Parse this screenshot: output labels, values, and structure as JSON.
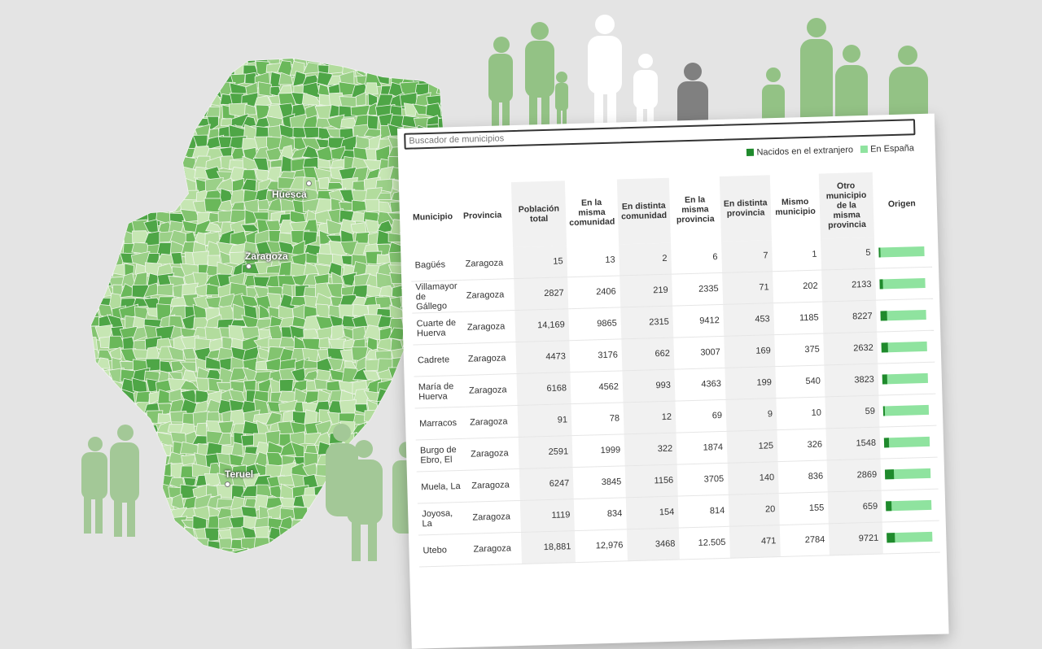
{
  "map": {
    "cities": [
      {
        "name": "Huesca"
      },
      {
        "name": "Zaragoza"
      },
      {
        "name": "Teruel"
      }
    ],
    "colors": [
      "#4ea646",
      "#6ab85a",
      "#83c470",
      "#9bd088",
      "#b2dc9d",
      "#c6e6b3"
    ]
  },
  "card": {
    "search_placeholder": "Buscador de municipios",
    "legend": [
      {
        "label": "Nacidos en el extranjero",
        "color": "#1f8a2c"
      },
      {
        "label": "En España",
        "color": "#8fe39f"
      }
    ],
    "headers": {
      "municipio": "Municipio",
      "provincia": "Provincia",
      "poblacion": "Población total",
      "misma_comunidad": "En la misma comunidad",
      "distinta_comunidad": "En distinta comunidad",
      "misma_provincia": "En la misma provincia",
      "distinta_provincia": "En distinta provincia",
      "mismo_municipio": "Mismo municipio",
      "otro_municipio": "Otro municipio de la misma provincia",
      "origen": "Origen"
    },
    "rows": [
      {
        "municipio": "Bagüés",
        "provincia": "Zaragoza",
        "poblacion": "15",
        "misma_comunidad": "13",
        "distinta_comunidad": "2",
        "misma_provincia": "6",
        "distinta_provincia": "7",
        "mismo_municipio": "1",
        "otro_municipio": "5",
        "foreign_share": 0.02
      },
      {
        "municipio": "Villamayor de Gállego",
        "provincia": "Zaragoza",
        "poblacion": "2827",
        "misma_comunidad": "2406",
        "distinta_comunidad": "219",
        "misma_provincia": "2335",
        "distinta_provincia": "71",
        "mismo_municipio": "202",
        "otro_municipio": "2133",
        "foreign_share": 0.08
      },
      {
        "municipio": "Cuarte de Huerva",
        "provincia": "Zaragoza",
        "poblacion": "14,169",
        "misma_comunidad": "9865",
        "distinta_comunidad": "2315",
        "misma_provincia": "9412",
        "distinta_provincia": "453",
        "mismo_municipio": "1185",
        "otro_municipio": "8227",
        "foreign_share": 0.14
      },
      {
        "municipio": "Cadrete",
        "provincia": "Zaragoza",
        "poblacion": "4473",
        "misma_comunidad": "3176",
        "distinta_comunidad": "662",
        "misma_provincia": "3007",
        "distinta_provincia": "169",
        "mismo_municipio": "375",
        "otro_municipio": "2632",
        "foreign_share": 0.15
      },
      {
        "municipio": "María de Huerva",
        "provincia": "Zaragoza",
        "poblacion": "6168",
        "misma_comunidad": "4562",
        "distinta_comunidad": "993",
        "misma_provincia": "4363",
        "distinta_provincia": "199",
        "mismo_municipio": "540",
        "otro_municipio": "3823",
        "foreign_share": 0.1
      },
      {
        "municipio": "Marracos",
        "provincia": "Zaragoza",
        "poblacion": "91",
        "misma_comunidad": "78",
        "distinta_comunidad": "12",
        "misma_provincia": "69",
        "distinta_provincia": "9",
        "mismo_municipio": "10",
        "otro_municipio": "59",
        "foreign_share": 0.02
      },
      {
        "municipio": "Burgo de Ebro, El",
        "provincia": "Zaragoza",
        "poblacion": "2591",
        "misma_comunidad": "1999",
        "distinta_comunidad": "322",
        "misma_provincia": "1874",
        "distinta_provincia": "125",
        "mismo_municipio": "326",
        "otro_municipio": "1548",
        "foreign_share": 0.1
      },
      {
        "municipio": "Muela, La",
        "provincia": "Zaragoza",
        "poblacion": "6247",
        "misma_comunidad": "3845",
        "distinta_comunidad": "1156",
        "misma_provincia": "3705",
        "distinta_provincia": "140",
        "mismo_municipio": "836",
        "otro_municipio": "2869",
        "foreign_share": 0.2
      },
      {
        "municipio": "Joyosa, La",
        "provincia": "Zaragoza",
        "poblacion": "1119",
        "misma_comunidad": "834",
        "distinta_comunidad": "154",
        "misma_provincia": "814",
        "distinta_provincia": "20",
        "mismo_municipio": "155",
        "otro_municipio": "659",
        "foreign_share": 0.12
      },
      {
        "municipio": "Utebo",
        "provincia": "Zaragoza",
        "poblacion": "18,881",
        "misma_comunidad": "12,976",
        "distinta_comunidad": "3468",
        "misma_provincia": "12.505",
        "distinta_provincia": "471",
        "mismo_municipio": "2784",
        "otro_municipio": "9721",
        "foreign_share": 0.17
      }
    ]
  }
}
